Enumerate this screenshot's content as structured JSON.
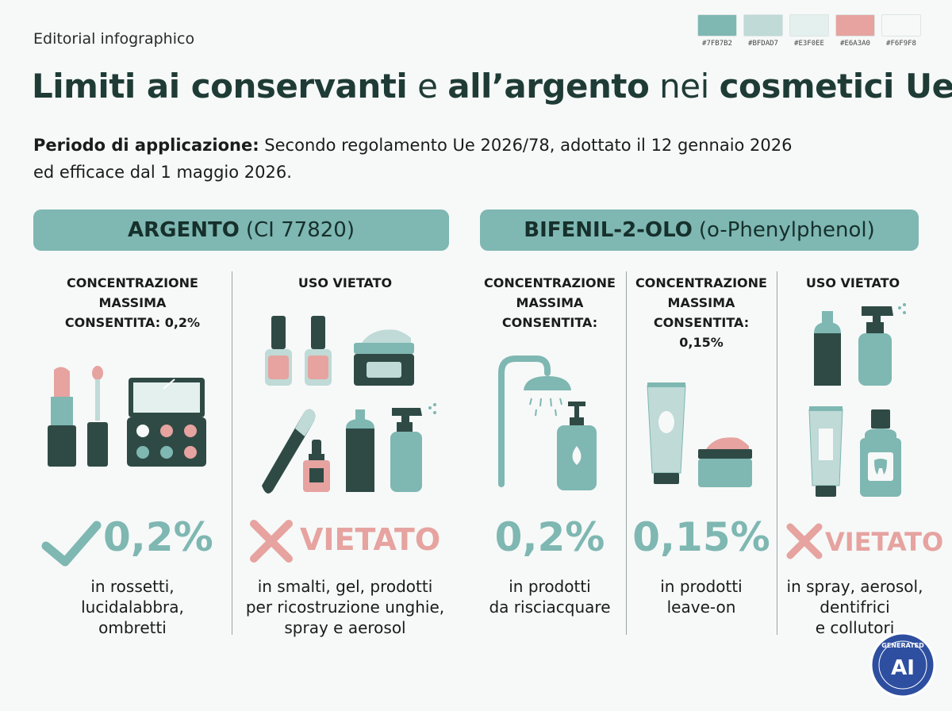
{
  "eyebrow": "Editorial infographico",
  "palette": [
    {
      "hex": "#7FB7B2",
      "label": "#7FB7B2"
    },
    {
      "hex": "#BFDAD7",
      "label": "#BFDAD7"
    },
    {
      "hex": "#E3F0EE",
      "label": "#E3F0EE"
    },
    {
      "hex": "#E6A3A0",
      "label": "#E6A3A0"
    },
    {
      "hex": "#F6F9F8",
      "label": "#F6F9F8"
    }
  ],
  "title": {
    "part1": "Limiti ai conservanti",
    "part2": " e ",
    "part3": "all’argento",
    "part4": " nei ",
    "part5": "cosmetici Ue"
  },
  "period": {
    "label": "Periodo di applicazione:",
    "text": " Secondo regolamento Ue 2026/78, adottato il 12 gennaio 2026",
    "text2": "ed efficace dal 1 maggio 2026."
  },
  "left": {
    "banner_bold": "ARGENTO",
    "banner_rest": "(CI 77820)",
    "col1": {
      "head1": "CONCENTRAZIONE",
      "head2": "MASSIMA",
      "head3": "CONSENTITA: 0,2%",
      "value": "0,2%",
      "cap1": "in rossetti,",
      "cap2": "lucidalabbra,",
      "cap3": "ombretti"
    },
    "col2": {
      "head1": "USO VIETATO",
      "value": "VIETATO",
      "cap1": "in smalti, gel, prodotti",
      "cap2": "per ricostruzione unghie,",
      "cap3": "spray e aerosol"
    }
  },
  "right": {
    "banner_bold": "BIFENIL-2-OLO",
    "banner_rest": "(o-Phenylphenol)",
    "col1": {
      "head1": "CONCENTRAZIONE",
      "head2": "MASSIMA",
      "head3": "CONSENTITA:",
      "value": "0,2%",
      "cap1": "in prodotti",
      "cap2": "da risciacquare"
    },
    "col2": {
      "head1": "CONCENTRAZIONE",
      "head2": "MASSIMA",
      "head3": "CONSENTITA:",
      "head4": "0,15%",
      "value": "0,15%",
      "cap1": "in prodotti",
      "cap2": "leave-on"
    },
    "col3": {
      "head1": "USO VIETATO",
      "value": "VIETATO",
      "cap1": "in spray, aerosol,",
      "cap2": "dentifrici",
      "cap3": "e collutori"
    }
  },
  "badge": {
    "text1": "GENERATED",
    "text2": "AI"
  },
  "colors": {
    "teal": "#7FB7B2",
    "teal_light": "#BFDAD7",
    "dark": "#2F4A45",
    "coral": "#E6A3A0",
    "background": "#F6F9F8"
  }
}
